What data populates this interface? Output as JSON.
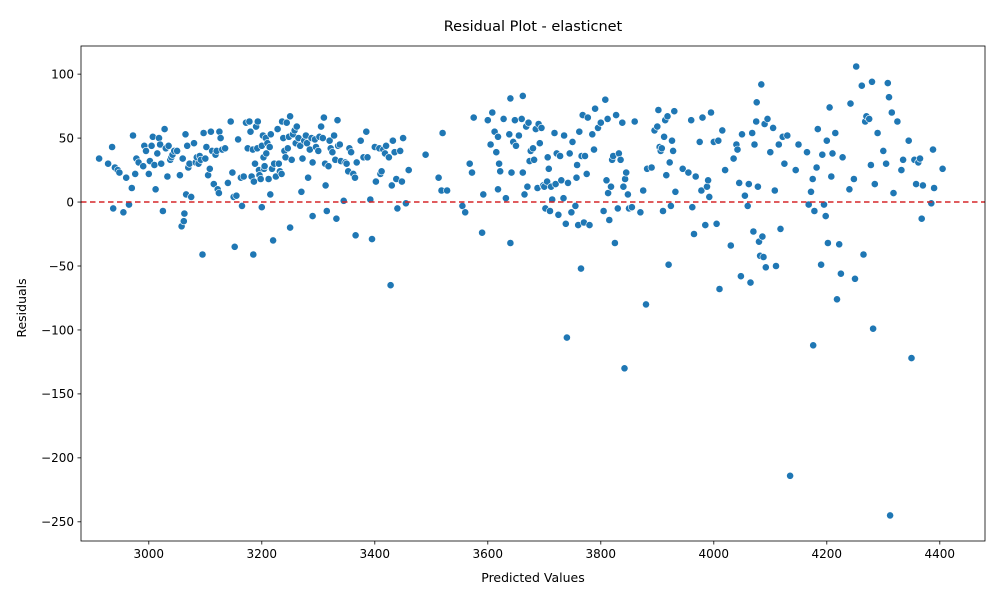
{
  "chart_data": {
    "type": "scatter",
    "title": "Residual Plot - elasticnet",
    "xlabel": "Predicted Values",
    "ylabel": "Residuals",
    "xlim": [
      2880,
      4480
    ],
    "ylim": [
      -265,
      122
    ],
    "xticks": [
      3000,
      3200,
      3400,
      3600,
      3800,
      4000,
      4200,
      4400
    ],
    "yticks": [
      -250,
      -200,
      -150,
      -100,
      -50,
      0,
      50,
      100
    ],
    "grid": false,
    "legend": "none",
    "point_color": "#1f77b4",
    "reference_line": {
      "y": 0,
      "color": "#d62728",
      "style": "dashed"
    },
    "points": [
      [
        2912,
        34
      ],
      [
        2928,
        30
      ],
      [
        2935,
        43
      ],
      [
        2937,
        -5
      ],
      [
        2940,
        27
      ],
      [
        2945,
        25
      ],
      [
        2948,
        23
      ],
      [
        2955,
        -8
      ],
      [
        2960,
        19
      ],
      [
        2965,
        -2
      ],
      [
        2970,
        11
      ],
      [
        2972,
        52
      ],
      [
        2976,
        22
      ],
      [
        2978,
        34
      ],
      [
        2982,
        31
      ],
      [
        2990,
        28
      ],
      [
        2992,
        44
      ],
      [
        2995,
        40
      ],
      [
        3000,
        22
      ],
      [
        3002,
        32
      ],
      [
        3005,
        44
      ],
      [
        3007,
        51
      ],
      [
        3010,
        29
      ],
      [
        3012,
        10
      ],
      [
        3015,
        38
      ],
      [
        3018,
        50
      ],
      [
        3020,
        45
      ],
      [
        3022,
        30
      ],
      [
        3025,
        -7
      ],
      [
        3028,
        57
      ],
      [
        3030,
        42
      ],
      [
        3033,
        20
      ],
      [
        3035,
        44
      ],
      [
        3038,
        33
      ],
      [
        3040,
        35
      ],
      [
        3042,
        37
      ],
      [
        3045,
        40
      ],
      [
        3050,
        40
      ],
      [
        3055,
        21
      ],
      [
        3058,
        -19
      ],
      [
        3060,
        34
      ],
      [
        3062,
        -15
      ],
      [
        3063,
        -9
      ],
      [
        3065,
        53
      ],
      [
        3066,
        6
      ],
      [
        3068,
        44
      ],
      [
        3070,
        27
      ],
      [
        3072,
        30
      ],
      [
        3075,
        4
      ],
      [
        3080,
        46
      ],
      [
        3083,
        31
      ],
      [
        3085,
        35
      ],
      [
        3088,
        30
      ],
      [
        3090,
        36
      ],
      [
        3092,
        33
      ],
      [
        3095,
        -41
      ],
      [
        3097,
        54
      ],
      [
        3100,
        34
      ],
      [
        3102,
        43
      ],
      [
        3105,
        21
      ],
      [
        3108,
        26
      ],
      [
        3110,
        55
      ],
      [
        3112,
        40
      ],
      [
        3115,
        14
      ],
      [
        3118,
        37
      ],
      [
        3120,
        40
      ],
      [
        3122,
        10
      ],
      [
        3124,
        7
      ],
      [
        3125,
        55
      ],
      [
        3127,
        50
      ],
      [
        3130,
        41
      ],
      [
        3135,
        42
      ],
      [
        3140,
        15
      ],
      [
        3145,
        63
      ],
      [
        3148,
        23
      ],
      [
        3150,
        4
      ],
      [
        3152,
        -35
      ],
      [
        3155,
        5
      ],
      [
        3158,
        49
      ],
      [
        3163,
        19
      ],
      [
        3165,
        -3
      ],
      [
        3168,
        20
      ],
      [
        3172,
        62
      ],
      [
        3175,
        42
      ],
      [
        3178,
        63
      ],
      [
        3180,
        55
      ],
      [
        3182,
        20
      ],
      [
        3184,
        41
      ],
      [
        3185,
        -41
      ],
      [
        3186,
        16
      ],
      [
        3188,
        30
      ],
      [
        3190,
        59
      ],
      [
        3192,
        42
      ],
      [
        3193,
        63
      ],
      [
        3195,
        25
      ],
      [
        3196,
        21
      ],
      [
        3198,
        18
      ],
      [
        3200,
        44
      ],
      [
        3200,
        -4
      ],
      [
        3202,
        52
      ],
      [
        3203,
        35
      ],
      [
        3204,
        26
      ],
      [
        3205,
        28
      ],
      [
        3207,
        50
      ],
      [
        3208,
        38
      ],
      [
        3210,
        46
      ],
      [
        3212,
        18
      ],
      [
        3214,
        43
      ],
      [
        3215,
        6
      ],
      [
        3216,
        53
      ],
      [
        3218,
        26
      ],
      [
        3220,
        -30
      ],
      [
        3222,
        30
      ],
      [
        3225,
        20
      ],
      [
        3228,
        57
      ],
      [
        3230,
        30
      ],
      [
        3232,
        24
      ],
      [
        3235,
        22
      ],
      [
        3236,
        63
      ],
      [
        3238,
        50
      ],
      [
        3240,
        40
      ],
      [
        3242,
        35
      ],
      [
        3244,
        62
      ],
      [
        3246,
        42
      ],
      [
        3248,
        51
      ],
      [
        3250,
        67
      ],
      [
        3250,
        -20
      ],
      [
        3253,
        33
      ],
      [
        3255,
        53
      ],
      [
        3258,
        56
      ],
      [
        3260,
        46
      ],
      [
        3262,
        59
      ],
      [
        3265,
        50
      ],
      [
        3268,
        44
      ],
      [
        3270,
        8
      ],
      [
        3272,
        34
      ],
      [
        3275,
        48
      ],
      [
        3278,
        52
      ],
      [
        3280,
        46
      ],
      [
        3282,
        19
      ],
      [
        3285,
        41
      ],
      [
        3288,
        50
      ],
      [
        3290,
        31
      ],
      [
        3290,
        -11
      ],
      [
        3294,
        49
      ],
      [
        3296,
        43
      ],
      [
        3300,
        40
      ],
      [
        3302,
        51
      ],
      [
        3305,
        59
      ],
      [
        3308,
        50
      ],
      [
        3310,
        66
      ],
      [
        3312,
        30
      ],
      [
        3313,
        13
      ],
      [
        3315,
        -7
      ],
      [
        3318,
        28
      ],
      [
        3320,
        48
      ],
      [
        3322,
        42
      ],
      [
        3325,
        39
      ],
      [
        3328,
        52
      ],
      [
        3330,
        33
      ],
      [
        3332,
        -13
      ],
      [
        3334,
        64
      ],
      [
        3335,
        44
      ],
      [
        3338,
        45
      ],
      [
        3340,
        32
      ],
      [
        3345,
        1
      ],
      [
        3348,
        31
      ],
      [
        3350,
        30
      ],
      [
        3353,
        24
      ],
      [
        3355,
        42
      ],
      [
        3358,
        39
      ],
      [
        3362,
        22
      ],
      [
        3365,
        19
      ],
      [
        3366,
        -26
      ],
      [
        3368,
        31
      ],
      [
        3375,
        48
      ],
      [
        3380,
        35
      ],
      [
        3385,
        55
      ],
      [
        3387,
        35
      ],
      [
        3392,
        2
      ],
      [
        3395,
        -29
      ],
      [
        3400,
        43
      ],
      [
        3402,
        16
      ],
      [
        3408,
        42
      ],
      [
        3410,
        22
      ],
      [
        3412,
        24
      ],
      [
        3415,
        41
      ],
      [
        3418,
        38
      ],
      [
        3420,
        44
      ],
      [
        3425,
        35
      ],
      [
        3428,
        -65
      ],
      [
        3430,
        13
      ],
      [
        3431,
        48
      ],
      [
        3432,
        48
      ],
      [
        3435,
        39
      ],
      [
        3438,
        18
      ],
      [
        3440,
        -5
      ],
      [
        3445,
        40
      ],
      [
        3448,
        16
      ],
      [
        3450,
        50
      ],
      [
        3455,
        -1
      ],
      [
        3460,
        25
      ],
      [
        3490,
        37
      ],
      [
        3513,
        19
      ],
      [
        3518,
        9
      ],
      [
        3520,
        54
      ],
      [
        3528,
        9
      ],
      [
        3555,
        -3
      ],
      [
        3560,
        -8
      ],
      [
        3568,
        30
      ],
      [
        3572,
        23
      ],
      [
        3575,
        66
      ],
      [
        3590,
        -24
      ],
      [
        3592,
        6
      ],
      [
        3600,
        64
      ],
      [
        3605,
        45
      ],
      [
        3608,
        70
      ],
      [
        3612,
        55
      ],
      [
        3615,
        39
      ],
      [
        3618,
        51
      ],
      [
        3618,
        10
      ],
      [
        3620,
        30
      ],
      [
        3622,
        24
      ],
      [
        3628,
        65
      ],
      [
        3632,
        3
      ],
      [
        3638,
        53
      ],
      [
        3640,
        -32
      ],
      [
        3640,
        81
      ],
      [
        3642,
        23
      ],
      [
        3645,
        47
      ],
      [
        3648,
        64
      ],
      [
        3650,
        44
      ],
      [
        3655,
        52
      ],
      [
        3660,
        65
      ],
      [
        3662,
        83
      ],
      [
        3662,
        23
      ],
      [
        3665,
        6
      ],
      [
        3668,
        59
      ],
      [
        3670,
        12
      ],
      [
        3672,
        62
      ],
      [
        3674,
        32
      ],
      [
        3676,
        40
      ],
      [
        3680,
        42
      ],
      [
        3682,
        33
      ],
      [
        3685,
        57
      ],
      [
        3688,
        11
      ],
      [
        3690,
        61
      ],
      [
        3692,
        46
      ],
      [
        3695,
        58
      ],
      [
        3698,
        13
      ],
      [
        3700,
        12
      ],
      [
        3702,
        -5
      ],
      [
        3705,
        16
      ],
      [
        3706,
        35
      ],
      [
        3708,
        26
      ],
      [
        3710,
        -7
      ],
      [
        3712,
        12
      ],
      [
        3714,
        2
      ],
      [
        3718,
        54
      ],
      [
        3720,
        14
      ],
      [
        3722,
        38
      ],
      [
        3725,
        -10
      ],
      [
        3728,
        36
      ],
      [
        3730,
        17
      ],
      [
        3734,
        3
      ],
      [
        3735,
        52
      ],
      [
        3738,
        -17
      ],
      [
        3740,
        -106
      ],
      [
        3742,
        15
      ],
      [
        3745,
        38
      ],
      [
        3748,
        -8
      ],
      [
        3750,
        47
      ],
      [
        3755,
        -3
      ],
      [
        3757,
        19
      ],
      [
        3758,
        29
      ],
      [
        3760,
        -18
      ],
      [
        3762,
        55
      ],
      [
        3765,
        -52
      ],
      [
        3766,
        36
      ],
      [
        3768,
        68
      ],
      [
        3770,
        -16
      ],
      [
        3772,
        36
      ],
      [
        3775,
        22
      ],
      [
        3777,
        66
      ],
      [
        3780,
        -18
      ],
      [
        3785,
        53
      ],
      [
        3788,
        41
      ],
      [
        3790,
        73
      ],
      [
        3795,
        58
      ],
      [
        3800,
        62
      ],
      [
        3805,
        -7
      ],
      [
        3808,
        80
      ],
      [
        3810,
        17
      ],
      [
        3812,
        65
      ],
      [
        3813,
        7
      ],
      [
        3815,
        -14
      ],
      [
        3818,
        12
      ],
      [
        3820,
        33
      ],
      [
        3822,
        36
      ],
      [
        3825,
        -32
      ],
      [
        3827,
        68
      ],
      [
        3830,
        -5
      ],
      [
        3832,
        38
      ],
      [
        3835,
        33
      ],
      [
        3838,
        62
      ],
      [
        3840,
        12
      ],
      [
        3842,
        -130
      ],
      [
        3843,
        18
      ],
      [
        3845,
        23
      ],
      [
        3848,
        6
      ],
      [
        3850,
        -5
      ],
      [
        3855,
        -4
      ],
      [
        3860,
        63
      ],
      [
        3870,
        -8
      ],
      [
        3875,
        9
      ],
      [
        3880,
        -80
      ],
      [
        3882,
        26
      ],
      [
        3890,
        27
      ],
      [
        3895,
        56
      ],
      [
        3900,
        59
      ],
      [
        3902,
        72
      ],
      [
        3904,
        43
      ],
      [
        3906,
        40
      ],
      [
        3908,
        42
      ],
      [
        3910,
        -7
      ],
      [
        3912,
        51
      ],
      [
        3914,
        64
      ],
      [
        3916,
        21
      ],
      [
        3918,
        67
      ],
      [
        3920,
        -49
      ],
      [
        3922,
        31
      ],
      [
        3924,
        -3
      ],
      [
        3926,
        48
      ],
      [
        3928,
        40
      ],
      [
        3930,
        71
      ],
      [
        3932,
        8
      ],
      [
        3945,
        26
      ],
      [
        3955,
        23
      ],
      [
        3960,
        64
      ],
      [
        3962,
        -4
      ],
      [
        3965,
        -25
      ],
      [
        3968,
        20
      ],
      [
        3975,
        47
      ],
      [
        3978,
        9
      ],
      [
        3980,
        66
      ],
      [
        3985,
        -18
      ],
      [
        3988,
        12
      ],
      [
        3990,
        17
      ],
      [
        3992,
        4
      ],
      [
        3995,
        70
      ],
      [
        4000,
        47
      ],
      [
        4005,
        -17
      ],
      [
        4008,
        48
      ],
      [
        4010,
        -68
      ],
      [
        4015,
        56
      ],
      [
        4020,
        25
      ],
      [
        4030,
        -34
      ],
      [
        4035,
        34
      ],
      [
        4040,
        45
      ],
      [
        4042,
        41
      ],
      [
        4045,
        15
      ],
      [
        4048,
        -58
      ],
      [
        4050,
        53
      ],
      [
        4055,
        5
      ],
      [
        4060,
        -3
      ],
      [
        4062,
        14
      ],
      [
        4065,
        -63
      ],
      [
        4068,
        54
      ],
      [
        4070,
        -23
      ],
      [
        4072,
        45
      ],
      [
        4075,
        63
      ],
      [
        4076,
        78
      ],
      [
        4078,
        12
      ],
      [
        4080,
        -31
      ],
      [
        4082,
        -42
      ],
      [
        4084,
        92
      ],
      [
        4086,
        -27
      ],
      [
        4088,
        -43
      ],
      [
        4090,
        61
      ],
      [
        4092,
        -51
      ],
      [
        4095,
        65
      ],
      [
        4100,
        39
      ],
      [
        4105,
        58
      ],
      [
        4108,
        9
      ],
      [
        4110,
        -50
      ],
      [
        4115,
        45
      ],
      [
        4118,
        -21
      ],
      [
        4122,
        51
      ],
      [
        4125,
        30
      ],
      [
        4130,
        52
      ],
      [
        4135,
        -214
      ],
      [
        4145,
        25
      ],
      [
        4150,
        45
      ],
      [
        4165,
        39
      ],
      [
        4168,
        -2
      ],
      [
        4172,
        8
      ],
      [
        4175,
        18
      ],
      [
        4176,
        -112
      ],
      [
        4178,
        -7
      ],
      [
        4182,
        27
      ],
      [
        4184,
        57
      ],
      [
        4190,
        -49
      ],
      [
        4192,
        37
      ],
      [
        4195,
        -2
      ],
      [
        4198,
        -11
      ],
      [
        4200,
        48
      ],
      [
        4202,
        -32
      ],
      [
        4205,
        74
      ],
      [
        4208,
        20
      ],
      [
        4210,
        38
      ],
      [
        4215,
        54
      ],
      [
        4218,
        -76
      ],
      [
        4222,
        -33
      ],
      [
        4225,
        -56
      ],
      [
        4228,
        35
      ],
      [
        4240,
        10
      ],
      [
        4242,
        77
      ],
      [
        4248,
        18
      ],
      [
        4250,
        -60
      ],
      [
        4252,
        106
      ],
      [
        4262,
        91
      ],
      [
        4265,
        -41
      ],
      [
        4268,
        63
      ],
      [
        4270,
        67
      ],
      [
        4275,
        65
      ],
      [
        4278,
        29
      ],
      [
        4280,
        94
      ],
      [
        4282,
        -99
      ],
      [
        4285,
        14
      ],
      [
        4290,
        54
      ],
      [
        4300,
        40
      ],
      [
        4305,
        30
      ],
      [
        4308,
        93
      ],
      [
        4310,
        82
      ],
      [
        4312,
        -245
      ],
      [
        4315,
        70
      ],
      [
        4318,
        7
      ],
      [
        4325,
        63
      ],
      [
        4332,
        25
      ],
      [
        4335,
        33
      ],
      [
        4345,
        48
      ],
      [
        4350,
        -122
      ],
      [
        4355,
        33
      ],
      [
        4358,
        14
      ],
      [
        4362,
        31
      ],
      [
        4365,
        34
      ],
      [
        4368,
        -13
      ],
      [
        4370,
        13
      ],
      [
        4385,
        -1
      ],
      [
        4388,
        41
      ],
      [
        4390,
        11
      ],
      [
        4405,
        26
      ]
    ]
  }
}
